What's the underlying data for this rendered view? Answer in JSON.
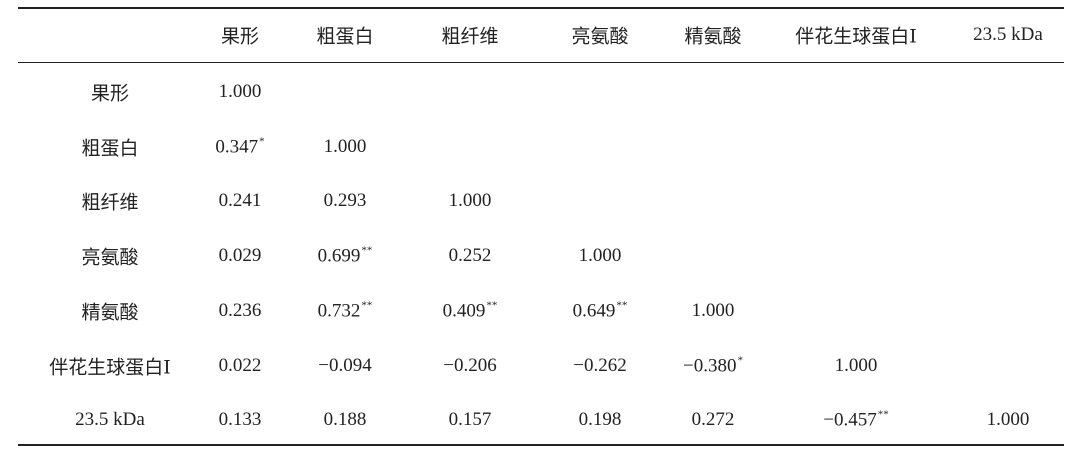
{
  "table": {
    "header": [
      "果形",
      "粗蛋白",
      "粗纤维",
      "亮氨酸",
      "精氨酸",
      "伴花生球蛋白Ⅰ",
      "23.5 kDa"
    ],
    "rows": [
      {
        "label": "果形",
        "cells": [
          "1.000"
        ]
      },
      {
        "label": "粗蛋白",
        "cells": [
          {
            "text": "0.347",
            "sup": "*"
          },
          "1.000"
        ]
      },
      {
        "label": "粗纤维",
        "cells": [
          "0.241",
          "0.293",
          "1.000"
        ]
      },
      {
        "label": "亮氨酸",
        "cells": [
          "0.029",
          {
            "text": "0.699",
            "sup": "**"
          },
          "0.252",
          "1.000"
        ]
      },
      {
        "label": "精氨酸",
        "cells": [
          "0.236",
          {
            "text": "0.732",
            "sup": "**"
          },
          {
            "text": "0.409",
            "sup": "**"
          },
          {
            "text": "0.649",
            "sup": "**"
          },
          "1.000"
        ]
      },
      {
        "label": "伴花生球蛋白Ⅰ",
        "cells": [
          "0.022",
          "−0.094",
          "−0.206",
          "−0.262",
          {
            "text": "−0.380",
            "sup": "*"
          },
          "1.000"
        ]
      },
      {
        "label": "23.5 kDa",
        "cells": [
          "0.133",
          "0.188",
          "0.157",
          "0.198",
          "0.272",
          {
            "text": "−0.457",
            "sup": "**"
          },
          "1.000"
        ]
      }
    ]
  }
}
